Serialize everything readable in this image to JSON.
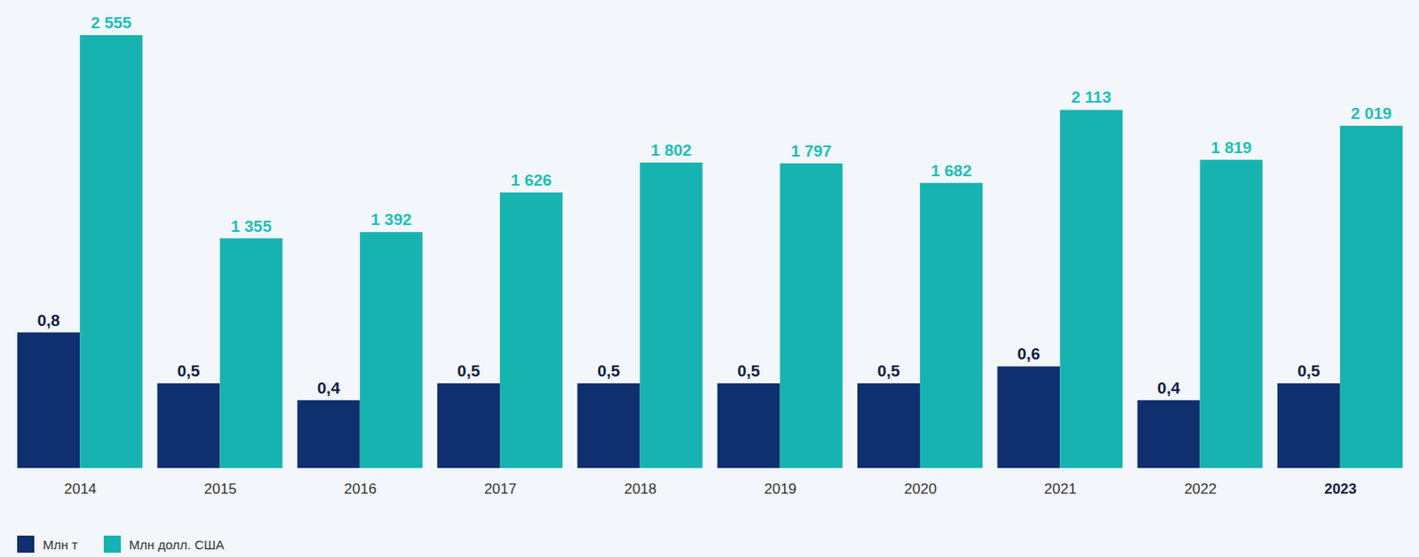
{
  "chart_data": {
    "type": "bar",
    "categories": [
      "2014",
      "2015",
      "2016",
      "2017",
      "2018",
      "2019",
      "2020",
      "2021",
      "2022",
      "2023"
    ],
    "series": [
      {
        "name": "Млн т",
        "color": "#0f2f6e",
        "label_color": "#0b1b45",
        "values": [
          0.8,
          0.5,
          0.4,
          0.5,
          0.5,
          0.5,
          0.5,
          0.6,
          0.4,
          0.5
        ],
        "value_labels": [
          "0,8",
          "0,5",
          "0,4",
          "0,5",
          "0,5",
          "0,5",
          "0,5",
          "0,6",
          "0,4",
          "0,5"
        ]
      },
      {
        "name": "Млн долл. США",
        "color": "#17b3b0",
        "label_color": "#1cc0b4",
        "axis": "y2",
        "values": [
          2555,
          1355,
          1392,
          1626,
          1802,
          1797,
          1682,
          2113,
          1819,
          2019
        ],
        "value_labels": [
          "2 555",
          "1 355",
          "1 392",
          "1 626",
          "1 802",
          "1 797",
          "1 682",
          "2 113",
          "1 819",
          "2 019"
        ]
      }
    ],
    "ylim": [
      0,
      2.6
    ],
    "yticks": [
      0,
      2.6
    ],
    "y2lim": [
      0,
      2600
    ],
    "y2ticks": [
      0,
      2600
    ],
    "data_labels": true,
    "tick_labels": "x",
    "legend": "bottom-left",
    "grid": false
  }
}
